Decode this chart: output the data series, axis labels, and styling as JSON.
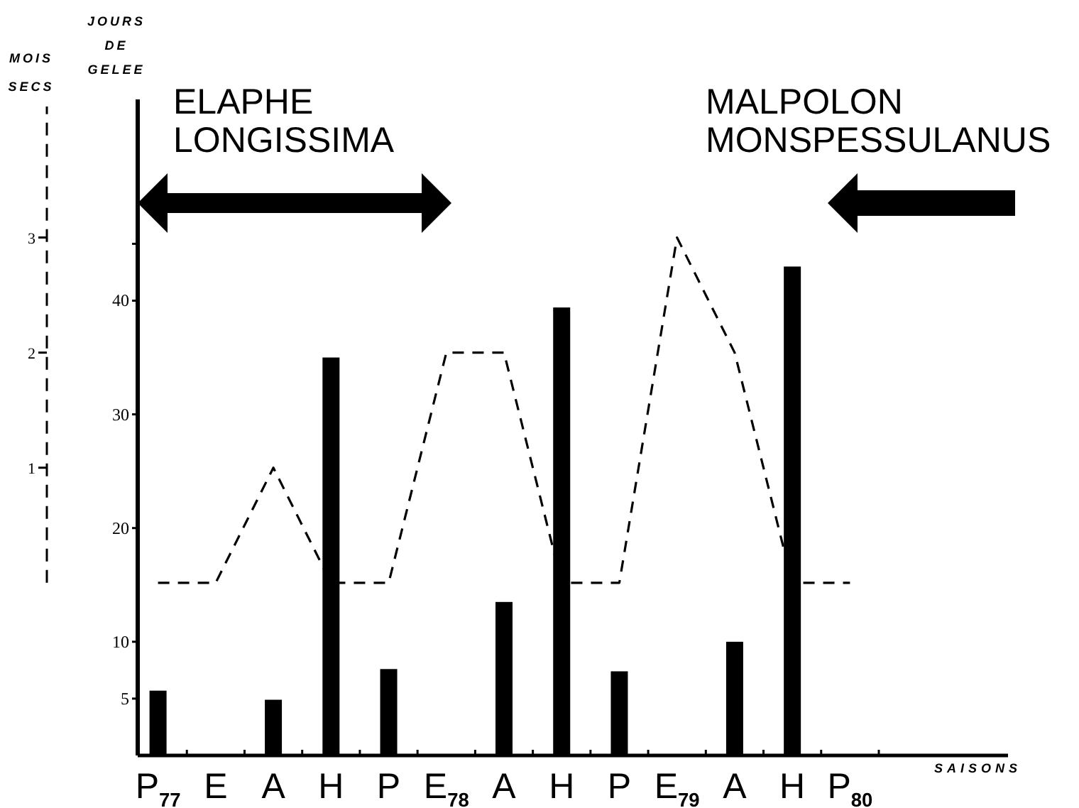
{
  "chart_data": {
    "type": "bar",
    "xlabel": "SAISONS",
    "ylabel": "JOURS DE GELEE",
    "y2label": "MOIS SECS",
    "categories": [
      "P$_{77}$",
      "E",
      "A",
      "H",
      "P",
      "E$_{78}$",
      "A",
      "H",
      "P",
      "E$_{79}$",
      "A",
      "H",
      "P$_{80}$"
    ],
    "series": [
      {
        "color": "#000000",
        "values": [
          5.7,
          0,
          4.9,
          35,
          7.6,
          0,
          13.5,
          39.4,
          7.4,
          0,
          10,
          43,
          0
        ]
      },
      {
        "type": "line",
        "axis": "y2",
        "color": "#000000",
        "line_style": "dashed",
        "marker": "none",
        "values": [
          0,
          0,
          1,
          0,
          0,
          2,
          2,
          0,
          0,
          3,
          2,
          0,
          0
        ]
      }
    ],
    "ylim": [
      0,
      57.7
    ],
    "yticks": [
      5,
      10,
      20,
      30,
      40,
      {
        "value": 45,
        "label": null
      }
    ],
    "y2lim": [
      -1.5,
      4.2
    ],
    "y2ticks": [
      1,
      2,
      3
    ],
    "annotations": [
      "ELAPHE LONGISSIMA",
      "MALPOLON MONSPESSULANUS"
    ],
    "grid": false
  }
}
